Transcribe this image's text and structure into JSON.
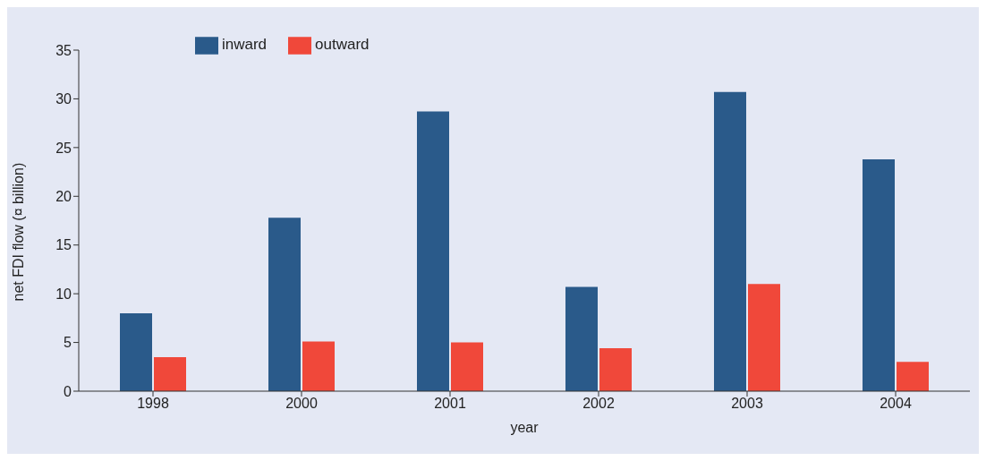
{
  "chart_data": {
    "type": "bar",
    "xlabel": "year",
    "ylabel": "net FDI flow (¤ billion)",
    "categories": [
      "1998",
      "2000",
      "2001",
      "2002",
      "2003",
      "2004"
    ],
    "series": [
      {
        "name": "inward",
        "color": "#2a5a8a",
        "values": [
          8,
          17.8,
          28.7,
          10.7,
          30.7,
          23.8
        ]
      },
      {
        "name": "outward",
        "color": "#f0483a",
        "values": [
          3.5,
          5.1,
          5.0,
          4.4,
          11.0,
          3.0
        ]
      }
    ],
    "ylim": [
      0,
      35
    ],
    "yticks": [
      0,
      5,
      10,
      15,
      20,
      25,
      30,
      35
    ],
    "grid": false,
    "legend": "top left"
  }
}
